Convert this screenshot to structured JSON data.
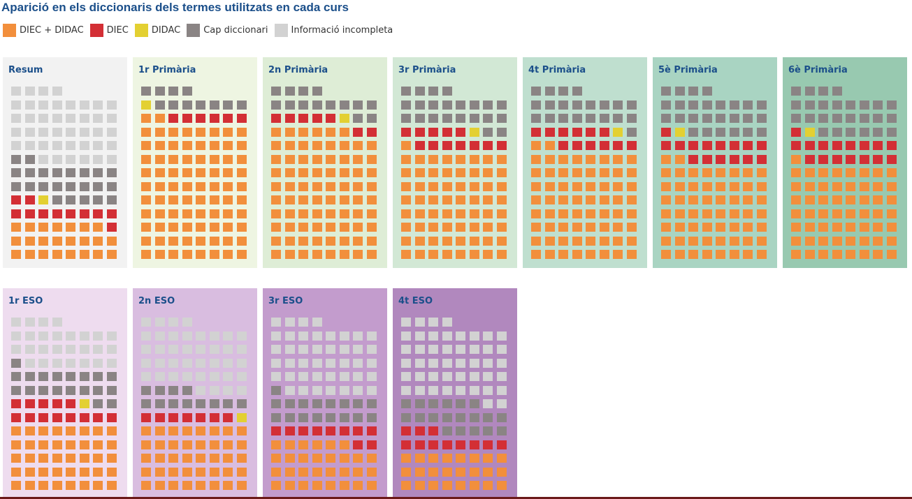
{
  "chart_data": {
    "type": "waffle",
    "title": "Aparició en els diccionaris dels termes utilitzats en cada curs",
    "colors": {
      "A": "#f28f3c",
      "B": "#d32f35",
      "Y": "#e3d032",
      "G": "#8a8484",
      "L": "#d2d2d2"
    },
    "legend": [
      {
        "label": "DIEC + DIDAC",
        "color": "#f28f3c"
      },
      {
        "label": "DIEC",
        "color": "#d32f35"
      },
      {
        "label": "DIDAC",
        "color": "#e3d032"
      },
      {
        "label": "Cap diccionari",
        "color": "#8a8484"
      },
      {
        "label": "Informació incompleta",
        "color": "#d2d2d2"
      }
    ],
    "panels": [
      {
        "name": "Resum",
        "bg": "#f2f2f2",
        "rows": [
          "LLLL",
          "LLLLLLLL",
          "LLLLLLLL",
          "LLLLLLLL",
          "LLLLLLLL",
          "GGLLLLLL",
          "GGGGGGGG",
          "GGGGGGGG",
          "BBYGGGGG",
          "BBBBBBBB",
          "AAAAAAAB",
          "AAAAAAAA",
          "AAAAAAAA"
        ]
      },
      {
        "name": "1r Primària",
        "bg": "#eef5e2",
        "rows": [
          "GGGG",
          "YGGGGGGG",
          "AABBBBBB",
          "AAAAAAAA",
          "AAAAAAAA",
          "AAAAAAAA",
          "AAAAAAAA",
          "AAAAAAAA",
          "AAAAAAAA",
          "AAAAAAAA",
          "AAAAAAAA",
          "AAAAAAAA",
          "AAAAAAAA"
        ]
      },
      {
        "name": "2n Primària",
        "bg": "#deedd6",
        "rows": [
          "GGGG",
          "GGGGGGGG",
          "BBBBBYGG",
          "AAAAAABB",
          "AAAAAAAA",
          "AAAAAAAA",
          "AAAAAAAA",
          "AAAAAAAA",
          "AAAAAAAA",
          "AAAAAAAA",
          "AAAAAAAA",
          "AAAAAAAA",
          "AAAAAAAA"
        ]
      },
      {
        "name": "3r Primària",
        "bg": "#d2e8d5",
        "rows": [
          "GGGG",
          "GGGGGGGG",
          "GGGGGGGG",
          "BBBBBYGG",
          "ABBBBBBB",
          "AAAAAAAA",
          "AAAAAAAA",
          "AAAAAAAA",
          "AAAAAAAA",
          "AAAAAAAA",
          "AAAAAAAA",
          "AAAAAAAA",
          "AAAAAAAA"
        ]
      },
      {
        "name": "4t Primària",
        "bg": "#bfdfcf",
        "rows": [
          "GGGG",
          "GGGGGGGG",
          "GGGGGGGG",
          "BBBBBBYG",
          "AABBBBBB",
          "AAAAAAAA",
          "AAAAAAAA",
          "AAAAAAAA",
          "AAAAAAAA",
          "AAAAAAAA",
          "AAAAAAAA",
          "AAAAAAAA",
          "AAAAAAAA"
        ]
      },
      {
        "name": "5è Primària",
        "bg": "#a9d4c2",
        "rows": [
          "GGGG",
          "GGGGGGGG",
          "GGGGGGGG",
          "BYGGGGGG",
          "BBBBBBBB",
          "AABBBBBB",
          "AAAAAAAA",
          "AAAAAAAA",
          "AAAAAAAA",
          "AAAAAAAA",
          "AAAAAAAA",
          "AAAAAAAA",
          "AAAAAAAA"
        ]
      },
      {
        "name": "6è Primària",
        "bg": "#98c9b0",
        "rows": [
          "GGGG",
          "GGGGGGGG",
          "GGGGGGGG",
          "BYGGGGGG",
          "BBBBBBBB",
          "ABBBBBBB",
          "AAAAAAAA",
          "AAAAAAAA",
          "AAAAAAAA",
          "AAAAAAAA",
          "AAAAAAAA",
          "AAAAAAAA",
          "AAAAAAAA"
        ]
      },
      {
        "name": "1r ESO",
        "bg": "#eedcef",
        "rows": [
          "LLLL",
          "LLLLLLLL",
          "LLLLLLLL",
          "GLLLLLLL",
          "GGGGGGGG",
          "GGGGGGGG",
          "BBBBBYGG",
          "BBBBBBBB",
          "AAAAAAAA",
          "AAAAAAAA",
          "AAAAAAAA",
          "AAAAAAAA",
          "AAAAAAAA"
        ]
      },
      {
        "name": "2n ESO",
        "bg": "#d9bde0",
        "rows": [
          "LLLL",
          "LLLLLLLL",
          "LLLLLLLL",
          "LLLLLLLL",
          "LLLLLLLL",
          "GGGGLLLL",
          "GGGGGGGG",
          "BBBBBBBY",
          "AAAAAAAA",
          "AAAAAAAA",
          "AAAAAAAA",
          "AAAAAAAA",
          "AAAAAAAA"
        ]
      },
      {
        "name": "3r ESO",
        "bg": "#c39ccd",
        "rows": [
          "LLLL",
          "LLLLLLLL",
          "LLLLLLLL",
          "LLLLLLLL",
          "LLLLLLLL",
          "GLLLLLLL",
          "GGGGGGGG",
          "GGGGGGGG",
          "BBBBBBBB",
          "AAAAAABB",
          "AAAAAAAA",
          "AAAAAAAA",
          "AAAAAAAA"
        ]
      },
      {
        "name": "4t ESO",
        "bg": "#b188be",
        "rows": [
          "LLLL",
          "LLLLLLLL",
          "LLLLLLLL",
          "LLLLLLLL",
          "LLLLLLLL",
          "LLLLLLLL",
          "GGGGGGLL",
          "GGGGGGGG",
          "BBBGGGGG",
          "BBBBBBBB",
          "AAAAAAAA",
          "AAAAAAAA",
          "AAAAAAAA"
        ]
      }
    ]
  }
}
